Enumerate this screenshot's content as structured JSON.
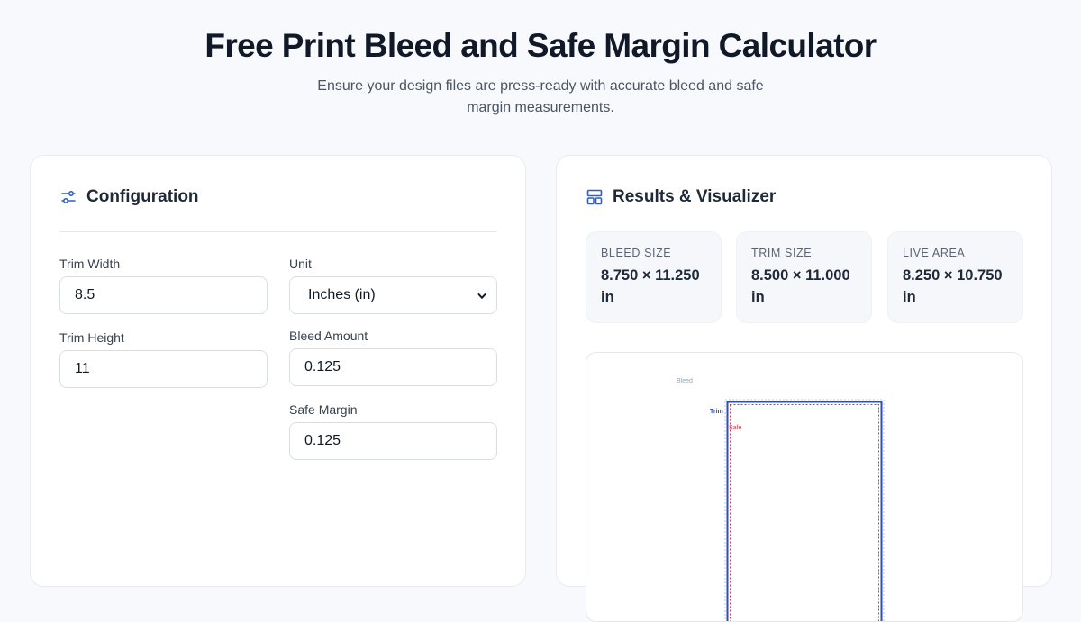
{
  "header": {
    "title": "Free Print Bleed and Safe Margin Calculator",
    "subtitle": "Ensure your design files are press-ready with accurate bleed and safe margin measurements."
  },
  "config": {
    "title": "Configuration",
    "icon": "sliders-icon",
    "trim_width": {
      "label": "Trim Width",
      "value": "8.5"
    },
    "trim_height": {
      "label": "Trim Height",
      "value": "11"
    },
    "unit": {
      "label": "Unit",
      "value": "Inches (in)"
    },
    "bleed": {
      "label": "Bleed Amount",
      "value": "0.125"
    },
    "safe": {
      "label": "Safe Margin",
      "value": "0.125"
    }
  },
  "results": {
    "title": "Results & Visualizer",
    "icon": "layout-icon",
    "stats": [
      {
        "label": "BLEED SIZE",
        "value": "8.750 × 11.250 in"
      },
      {
        "label": "TRIM SIZE",
        "value": "8.500 × 11.000 in"
      },
      {
        "label": "LIVE AREA",
        "value": "8.250 × 10.750 in"
      }
    ],
    "visual": {
      "bleed_label": "Bleed",
      "trim_label": "Trim",
      "safe_label": "Safe"
    }
  },
  "colors": {
    "accent": "#2f5fc4",
    "trim": "#2b4fb3",
    "safe": "#d23a4b",
    "bleed": "#b9c2cf"
  }
}
